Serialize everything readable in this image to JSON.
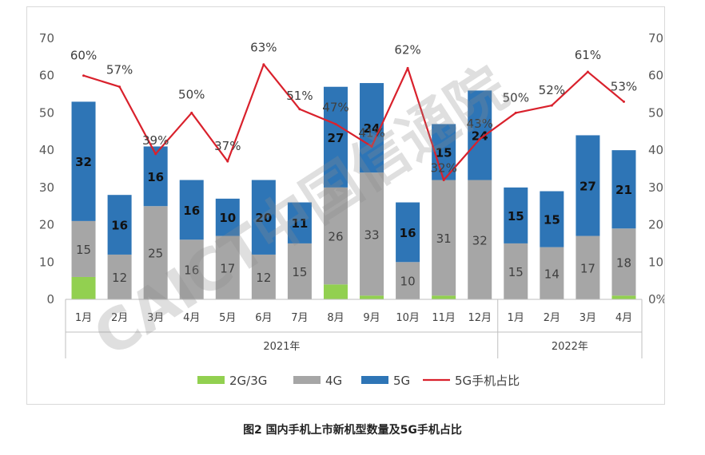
{
  "chart_data": {
    "type": "bar",
    "categories": [
      "1月",
      "2月",
      "3月",
      "4月",
      "5月",
      "6月",
      "7月",
      "8月",
      "9月",
      "10月",
      "11月",
      "12月",
      "1月",
      "2月",
      "3月",
      "4月"
    ],
    "groups": [
      {
        "label": "2021年",
        "count": 12
      },
      {
        "label": "2022年",
        "count": 4
      }
    ],
    "series": [
      {
        "name": "2G/3G",
        "kind": "bar",
        "color": "#92d050",
        "values": [
          6,
          0,
          0,
          0,
          0,
          0,
          0,
          4,
          1,
          0,
          1,
          0,
          0,
          0,
          0,
          1
        ],
        "labels": []
      },
      {
        "name": "4G",
        "kind": "bar",
        "color": "#a6a6a6",
        "values": [
          15,
          12,
          25,
          16,
          17,
          12,
          15,
          26,
          33,
          10,
          31,
          32,
          15,
          14,
          17,
          18
        ],
        "labels": [
          "15",
          "12",
          "25",
          "16",
          "17",
          "12",
          "15",
          "26",
          "33",
          "10",
          "31",
          "32",
          "15",
          "14",
          "17",
          "18"
        ]
      },
      {
        "name": "5G",
        "kind": "bar",
        "color": "#2e75b6",
        "values": [
          32,
          16,
          16,
          16,
          10,
          20,
          11,
          27,
          24,
          16,
          15,
          24,
          15,
          15,
          27,
          21
        ],
        "labels": [
          "32",
          "16",
          "16",
          "16",
          "10",
          "20",
          "11",
          "27",
          "24",
          "16",
          "15",
          "24",
          "15",
          "15",
          "27",
          "21"
        ]
      },
      {
        "name": "5G手机占比",
        "kind": "line",
        "axis": "right",
        "color": "#d9212c",
        "values": [
          60,
          57,
          39,
          50,
          37,
          63,
          51,
          47,
          41,
          62,
          32,
          43,
          50,
          52,
          61,
          53
        ],
        "labels": [
          "60%",
          "57%",
          "39%",
          "50%",
          "37%",
          "63%",
          "51%",
          "47%",
          "41%",
          "62%",
          "32%",
          "43%",
          "50%",
          "52%",
          "61%",
          "53%"
        ]
      }
    ],
    "y_left": {
      "min": 0,
      "max": 70,
      "ticks": [
        "0",
        "10",
        "20",
        "30",
        "40",
        "50",
        "60",
        "70"
      ]
    },
    "y_right": {
      "min": 0,
      "max": 70,
      "ticks": [
        "0%",
        "10%",
        "20%",
        "30%",
        "40%",
        "50%",
        "60%",
        "70%"
      ]
    },
    "legend": {
      "position": "bottom",
      "items": [
        "2G/3G",
        "4G",
        "5G",
        "5G手机占比"
      ]
    },
    "watermark": "CAICT中国信通院",
    "grid": false
  },
  "caption": "图2   国内手机上市新机型数量及5G手机占比"
}
